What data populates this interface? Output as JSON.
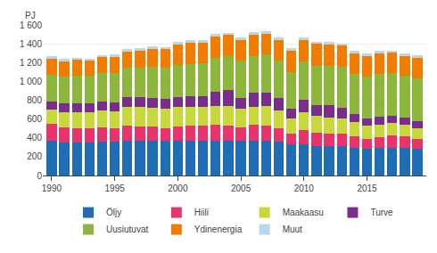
{
  "chart_data": {
    "type": "bar",
    "stacked": true,
    "ylabel": "PJ",
    "x": [
      1990,
      1991,
      1992,
      1993,
      1994,
      1995,
      1996,
      1997,
      1998,
      1999,
      2000,
      2001,
      2002,
      2003,
      2004,
      2005,
      2006,
      2007,
      2008,
      2009,
      2010,
      2011,
      2012,
      2013,
      2014,
      2015,
      2016,
      2017,
      2018,
      2019
    ],
    "xlim": [
      1989.3,
      2019.7
    ],
    "xticks": [
      1990,
      1995,
      2000,
      2005,
      2010,
      2015
    ],
    "ylim": [
      0,
      1600
    ],
    "yticks": [
      0,
      200,
      400,
      600,
      800,
      {
        "value": 1000,
        "label": "1 000"
      },
      {
        "value": 1200,
        "label": "1 200"
      },
      {
        "value": 1400,
        "label": "1 400"
      },
      {
        "value": 1600,
        "label": "1 600"
      }
    ],
    "grid": true,
    "legend": "bottom",
    "series": [
      {
        "name": "Öljy",
        "color": "#1f6eb5",
        "values": [
          370,
          355,
          350,
          355,
          360,
          358,
          365,
          370,
          368,
          365,
          368,
          372,
          372,
          368,
          368,
          368,
          372,
          368,
          358,
          328,
          328,
          312,
          312,
          308,
          298,
          288,
          298,
          298,
          292,
          288
        ]
      },
      {
        "name": "Hiili",
        "color": "#e8336d",
        "values": [
          175,
          155,
          155,
          145,
          150,
          145,
          165,
          155,
          150,
          140,
          155,
          160,
          155,
          170,
          165,
          145,
          165,
          165,
          140,
          115,
          155,
          145,
          130,
          135,
          115,
          100,
          110,
          130,
          120,
          100
        ]
      },
      {
        "name": "Maakaasu",
        "color": "#c8d83a",
        "values": [
          155,
          165,
          168,
          175,
          180,
          180,
          195,
          200,
          205,
          205,
          210,
          200,
          200,
          205,
          210,
          195,
          195,
          205,
          195,
          160,
          185,
          175,
          170,
          165,
          155,
          140,
          130,
          130,
          125,
          115
        ]
      },
      {
        "name": "Turve",
        "color": "#7b2d8b",
        "values": [
          90,
          90,
          95,
          90,
          95,
          90,
          110,
          105,
          105,
          100,
          100,
          115,
          120,
          150,
          165,
          120,
          145,
          145,
          130,
          110,
          140,
          120,
          135,
          115,
          85,
          80,
          90,
          80,
          75,
          70
        ]
      },
      {
        "name": "Uusiutuvat",
        "color": "#8db63c",
        "values": [
          280,
          290,
          295,
          295,
          305,
          315,
          310,
          320,
          325,
          335,
          340,
          340,
          350,
          360,
          360,
          395,
          395,
          400,
          400,
          390,
          405,
          415,
          420,
          430,
          430,
          440,
          450,
          450,
          450,
          460
        ]
      },
      {
        "name": "Ydinenergia",
        "color": "#f07d00",
        "values": [
          175,
          160,
          165,
          160,
          165,
          175,
          175,
          180,
          195,
          195,
          220,
          225,
          215,
          225,
          225,
          220,
          225,
          225,
          220,
          225,
          225,
          230,
          225,
          225,
          215,
          220,
          220,
          215,
          210,
          220
        ]
      },
      {
        "name": "Muut",
        "color": "#b8d8ea",
        "values": [
          25,
          25,
          25,
          25,
          25,
          25,
          25,
          25,
          25,
          25,
          25,
          25,
          25,
          25,
          25,
          25,
          25,
          25,
          25,
          25,
          25,
          25,
          25,
          25,
          25,
          25,
          25,
          25,
          25,
          25
        ]
      }
    ]
  }
}
